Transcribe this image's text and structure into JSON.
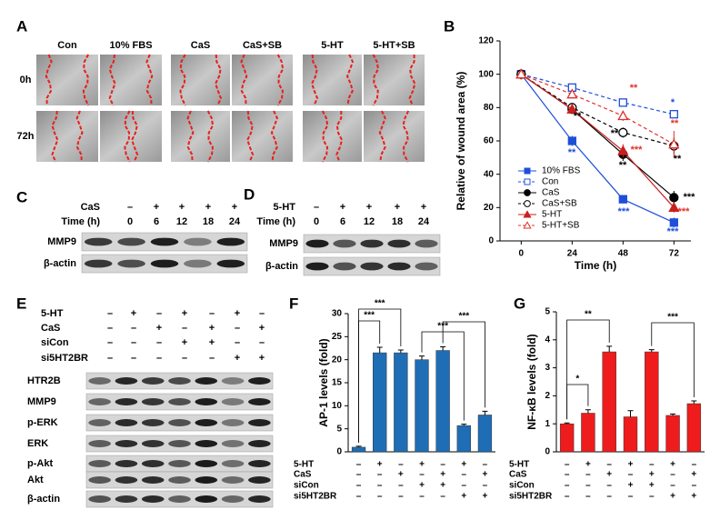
{
  "panels": {
    "A": {
      "label": "A",
      "columns": [
        "Con",
        "10% FBS",
        "CaS",
        "CaS+SB",
        "5-HT",
        "5-HT+SB"
      ],
      "rows": [
        "0h",
        "72h"
      ]
    },
    "C": {
      "label": "C",
      "treatment": {
        "name": "CaS",
        "signs": [
          "–",
          "+",
          "+",
          "+",
          "+"
        ]
      },
      "time": {
        "name": "Time (h)",
        "values": [
          0,
          6,
          12,
          18,
          24
        ]
      },
      "blots": [
        "MMP9",
        "β-actin"
      ]
    },
    "D": {
      "label": "D",
      "treatment": {
        "name": "5-HT",
        "signs": [
          "–",
          "+",
          "+",
          "+",
          "+"
        ]
      },
      "time": {
        "name": "Time (h)",
        "values": [
          0,
          6,
          12,
          18,
          24
        ]
      },
      "blots": [
        "MMP9",
        "β-actin"
      ]
    },
    "E": {
      "label": "E",
      "conditions": [
        {
          "name": "5-HT",
          "signs": [
            "–",
            "+",
            "–",
            "+",
            "–",
            "+",
            "–"
          ]
        },
        {
          "name": "CaS",
          "signs": [
            "–",
            "–",
            "+",
            "–",
            "+",
            "–",
            "+"
          ]
        },
        {
          "name": "siCon",
          "signs": [
            "–",
            "–",
            "–",
            "+",
            "+",
            "–",
            "–"
          ]
        },
        {
          "name": "si5HT2BR",
          "signs": [
            "–",
            "–",
            "–",
            "–",
            "–",
            "+",
            "+"
          ]
        }
      ],
      "blots": [
        "HTR2B",
        "MMP9",
        "p-ERK",
        "ERK",
        "p-Akt",
        "Akt",
        "β-actin"
      ]
    }
  },
  "chart_data": [
    {
      "type": "line",
      "label": "B",
      "xlabel": "Time (h)",
      "ylabel": "Relative of wound area (%)",
      "x": [
        0,
        24,
        48,
        72
      ],
      "xlim": [
        -10,
        80
      ],
      "xticks": [
        0,
        24,
        48,
        72
      ],
      "ylim": [
        0,
        120
      ],
      "yticks": [
        0,
        20,
        40,
        60,
        80,
        100,
        120
      ],
      "legend": "lower left",
      "series": [
        {
          "name": "10% FBS",
          "color": "#1f4fd8",
          "marker": "square",
          "filled": true,
          "dashed": false,
          "values": [
            100,
            60,
            25,
            11
          ],
          "errors": [
            3,
            3,
            2,
            3
          ]
        },
        {
          "name": "Con",
          "color": "#1f4fd8",
          "marker": "square",
          "filled": false,
          "dashed": true,
          "values": [
            100,
            92,
            83,
            76
          ],
          "errors": [
            3,
            2,
            2,
            2
          ]
        },
        {
          "name": "CaS",
          "color": "#000000",
          "marker": "circle",
          "filled": true,
          "dashed": false,
          "values": [
            100,
            79,
            52,
            26
          ],
          "errors": [
            3,
            2,
            4,
            4
          ]
        },
        {
          "name": "CaS+SB",
          "color": "#000000",
          "marker": "circle",
          "filled": false,
          "dashed": true,
          "values": [
            100,
            80,
            65,
            57
          ],
          "errors": [
            3,
            2,
            3,
            5
          ]
        },
        {
          "name": "5-HT",
          "color": "#c8201e",
          "marker": "triangle",
          "filled": true,
          "dashed": false,
          "values": [
            100,
            79,
            54,
            20
          ],
          "errors": [
            3,
            2,
            4,
            3
          ]
        },
        {
          "name": "5-HT+SB",
          "color": "#e0302c",
          "marker": "triangle",
          "filled": false,
          "dashed": true,
          "values": [
            100,
            88,
            75,
            58
          ],
          "errors": [
            3,
            2,
            3,
            8
          ]
        }
      ],
      "annotations": [
        {
          "text": "**",
          "color": "#1f4fd8"
        },
        {
          "text": "***",
          "color": "#1f4fd8"
        },
        {
          "text": "***",
          "color": "#1f4fd8"
        },
        {
          "text": "*",
          "color": "#1f4fd8"
        },
        {
          "text": "**",
          "color": "#e0302c"
        },
        {
          "text": "**",
          "color": "#e0302c"
        },
        {
          "text": "**",
          "color": "#000000"
        },
        {
          "text": "**",
          "color": "#000000"
        },
        {
          "text": "***",
          "color": "#e0302c"
        },
        {
          "text": "**",
          "color": "#000000"
        },
        {
          "text": "**",
          "color": "#000000"
        },
        {
          "text": "***",
          "color": "#000000"
        },
        {
          "text": "***",
          "color": "#e0302c"
        }
      ]
    },
    {
      "type": "bar",
      "label": "F",
      "ylabel": "AP-1 levels (fold)",
      "color": "#1f6db5",
      "values": [
        1,
        21.5,
        21.5,
        20,
        22,
        5.7,
        8
      ],
      "errors": [
        0.2,
        1.2,
        0.6,
        0.8,
        0.8,
        0.3,
        0.8
      ],
      "ylim": [
        0,
        30
      ],
      "yticks": [
        0,
        5,
        10,
        15,
        20,
        25,
        30
      ],
      "significance": [
        "***",
        "***",
        "***",
        "***"
      ],
      "conditions": [
        {
          "name": "5-HT",
          "signs": [
            "–",
            "+",
            "–",
            "+",
            "–",
            "+",
            "–"
          ]
        },
        {
          "name": "CaS",
          "signs": [
            "–",
            "–",
            "+",
            "–",
            "+",
            "–",
            "+"
          ]
        },
        {
          "name": "siCon",
          "signs": [
            "–",
            "–",
            "–",
            "+",
            "+",
            "–",
            "–"
          ]
        },
        {
          "name": "si5HT2BR",
          "signs": [
            "–",
            "–",
            "–",
            "–",
            "–",
            "+",
            "+"
          ]
        }
      ]
    },
    {
      "type": "bar",
      "label": "G",
      "ylabel": "NF-κB levels (fold)",
      "color": "#ee1c1c",
      "values": [
        1,
        1.38,
        3.57,
        1.25,
        3.57,
        1.3,
        1.72
      ],
      "errors": [
        0.03,
        0.12,
        0.2,
        0.22,
        0.08,
        0.05,
        0.1
      ],
      "ylim": [
        0,
        5
      ],
      "yticks": [
        0,
        1,
        2,
        3,
        4,
        5
      ],
      "significance": [
        "*",
        "**",
        "***"
      ],
      "conditions": [
        {
          "name": "5-HT",
          "signs": [
            "–",
            "+",
            "–",
            "+",
            "–",
            "+",
            "–"
          ]
        },
        {
          "name": "CaS",
          "signs": [
            "–",
            "–",
            "+",
            "–",
            "+",
            "–",
            "+"
          ]
        },
        {
          "name": "siCon",
          "signs": [
            "–",
            "–",
            "–",
            "+",
            "+",
            "–",
            "–"
          ]
        },
        {
          "name": "si5HT2BR",
          "signs": [
            "–",
            "–",
            "–",
            "–",
            "–",
            "+",
            "+"
          ]
        }
      ]
    }
  ]
}
